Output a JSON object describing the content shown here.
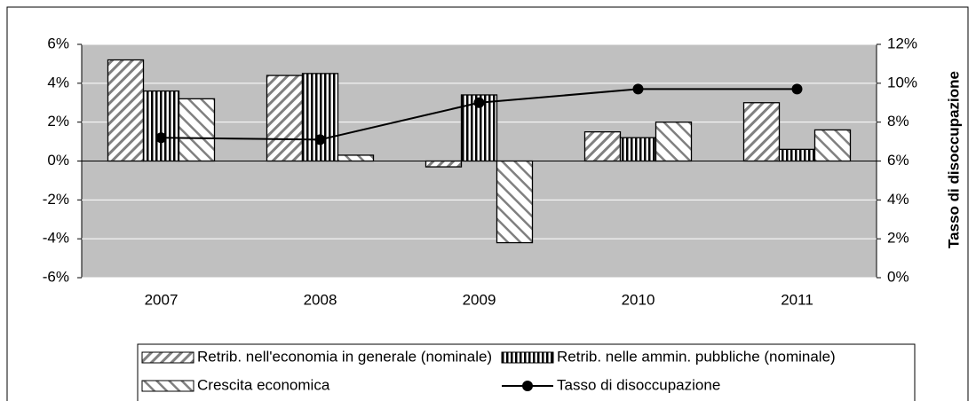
{
  "chart_data": {
    "type": "bar",
    "categories": [
      "2007",
      "2008",
      "2009",
      "2010",
      "2011"
    ],
    "series": [
      {
        "name": "Retrib. nell'economia in generale (nominale)",
        "color": "#808080",
        "pattern": "diagonal",
        "values": [
          5.2,
          4.4,
          -0.3,
          1.5,
          3.0
        ]
      },
      {
        "name": "Retrib. nelle ammin. pubbliche (nominale)",
        "color": "#000000",
        "pattern": "vertical",
        "values": [
          3.6,
          4.5,
          3.4,
          1.2,
          0.6
        ]
      },
      {
        "name": "Crescita economica",
        "color": "#808080",
        "pattern": "wide-diagonal",
        "values": [
          3.2,
          0.3,
          -4.2,
          2.0,
          1.6
        ]
      },
      {
        "name": "Tasso di disoccupazione",
        "type": "line",
        "axis": "y2",
        "color": "#000000",
        "values": [
          7.2,
          7.1,
          9.0,
          9.7,
          9.7
        ]
      }
    ],
    "y2label": "Tasso di disoccupazione",
    "ylim": [
      -6,
      6
    ],
    "yticks": [
      {
        "value": -6,
        "label": "-6%"
      },
      {
        "value": -4,
        "label": "-4%"
      },
      {
        "value": -2,
        "label": "-2%"
      },
      {
        "value": 0,
        "label": "0%"
      },
      {
        "value": 2,
        "label": "2%"
      },
      {
        "value": 4,
        "label": "4%"
      },
      {
        "value": 6,
        "label": "6%"
      }
    ],
    "y2lim": [
      0,
      12
    ],
    "y2ticks": [
      {
        "value": 0,
        "label": "0%"
      },
      {
        "value": 2,
        "label": "2%"
      },
      {
        "value": 4,
        "label": "4%"
      },
      {
        "value": 6,
        "label": "6%"
      },
      {
        "value": 8,
        "label": "8%"
      },
      {
        "value": 10,
        "label": "10%"
      },
      {
        "value": 12,
        "label": "12%"
      }
    ],
    "grid": true,
    "plot_background": "#c0c0c0",
    "legend": "bottom"
  }
}
